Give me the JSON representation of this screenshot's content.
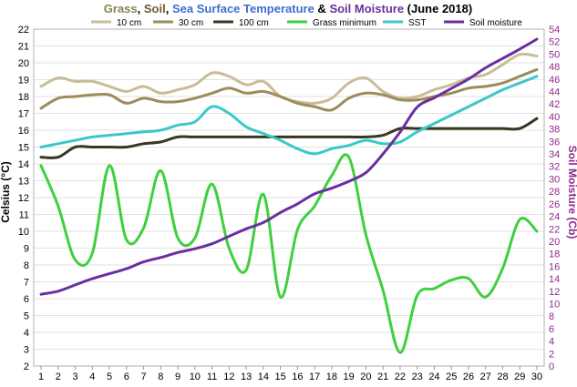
{
  "chart_data": {
    "type": "line",
    "title_parts": [
      {
        "text": "Grass",
        "color": "#8a8150"
      },
      {
        "text": ", ",
        "color": "#000000"
      },
      {
        "text": "Soil",
        "color": "#6b5b2e"
      },
      {
        "text": ", ",
        "color": "#000000"
      },
      {
        "text": "Sea Surface Temperature",
        "color": "#3c6fd1"
      },
      {
        "text": " & ",
        "color": "#000000"
      },
      {
        "text": "Soil Moisture",
        "color": "#6a2f9f"
      },
      {
        "text": " (June 2018)",
        "color": "#000000"
      }
    ],
    "ylabel_left": "Celsius (°C)",
    "ylabel_right": "Soil Moisture (Cb)",
    "x": [
      1,
      2,
      3,
      4,
      5,
      6,
      7,
      8,
      9,
      10,
      11,
      12,
      13,
      14,
      15,
      16,
      17,
      18,
      19,
      20,
      21,
      22,
      23,
      24,
      25,
      26,
      27,
      28,
      29,
      30
    ],
    "ylim_left": [
      2,
      22
    ],
    "yticks_left": [
      2,
      3,
      4,
      5,
      6,
      7,
      8,
      9,
      10,
      11,
      12,
      13,
      14,
      15,
      16,
      17,
      18,
      19,
      20,
      21,
      22
    ],
    "ylim_right": [
      0,
      54
    ],
    "yticks_right": [
      0,
      2,
      4,
      6,
      8,
      10,
      12,
      14,
      16,
      18,
      20,
      22,
      24,
      26,
      28,
      30,
      32,
      34,
      36,
      38,
      40,
      42,
      44,
      46,
      48,
      50,
      52,
      54
    ],
    "legend_position": "top",
    "grid": true,
    "series": [
      {
        "name": "10 cm",
        "axis": "left",
        "color": "#c8bd98",
        "values": [
          18.6,
          19.1,
          18.9,
          18.9,
          18.6,
          18.3,
          18.6,
          18.2,
          18.4,
          18.7,
          19.4,
          19.2,
          18.7,
          18.9,
          18.0,
          17.7,
          17.6,
          17.9,
          18.8,
          19.1,
          18.3,
          17.9,
          18.0,
          18.4,
          18.7,
          19.1,
          19.3,
          19.9,
          20.5,
          20.4
        ]
      },
      {
        "name": "30 cm",
        "axis": "left",
        "color": "#9b8c5a",
        "values": [
          17.3,
          17.9,
          18.0,
          18.1,
          18.1,
          17.6,
          17.9,
          17.7,
          17.7,
          17.9,
          18.2,
          18.5,
          18.2,
          18.3,
          18.0,
          17.6,
          17.4,
          17.2,
          17.9,
          18.2,
          18.1,
          17.8,
          17.8,
          18.0,
          18.2,
          18.5,
          18.6,
          18.8,
          19.2,
          19.6
        ]
      },
      {
        "name": "100 cm",
        "axis": "left",
        "color": "#3b3522",
        "values": [
          14.4,
          14.4,
          15.0,
          15.0,
          15.0,
          15.0,
          15.2,
          15.3,
          15.6,
          15.6,
          15.6,
          15.6,
          15.6,
          15.6,
          15.6,
          15.6,
          15.6,
          15.6,
          15.6,
          15.6,
          15.7,
          16.1,
          16.1,
          16.1,
          16.1,
          16.1,
          16.1,
          16.1,
          16.1,
          16.7
        ]
      },
      {
        "name": "Grass minimum",
        "axis": "left",
        "color": "#3fcf3f",
        "values": [
          13.9,
          11.5,
          8.3,
          8.7,
          13.9,
          9.5,
          10.2,
          13.6,
          9.6,
          9.6,
          12.8,
          9.0,
          7.7,
          12.2,
          6.1,
          10.1,
          11.5,
          13.3,
          14.4,
          9.8,
          6.5,
          2.8,
          6.2,
          6.6,
          7.1,
          7.2,
          6.1,
          7.8,
          10.7,
          10.0
        ]
      },
      {
        "name": "SST",
        "axis": "left",
        "color": "#3cc8c8",
        "values": [
          15.0,
          15.2,
          15.4,
          15.6,
          15.7,
          15.8,
          15.9,
          16.0,
          16.3,
          16.5,
          17.4,
          17.0,
          16.2,
          15.8,
          15.4,
          14.9,
          14.6,
          14.9,
          15.1,
          15.4,
          15.2,
          15.3,
          15.9,
          16.4,
          16.9,
          17.4,
          17.9,
          18.4,
          18.8,
          19.2
        ]
      },
      {
        "name": "Soil moisture",
        "axis": "right",
        "color": "#6a2f9f",
        "values": [
          11.5,
          12.0,
          13.0,
          14.0,
          14.8,
          15.6,
          16.7,
          17.4,
          18.2,
          18.8,
          19.6,
          20.8,
          22.0,
          23.0,
          24.6,
          26.0,
          27.6,
          28.5,
          29.6,
          31.0,
          34.0,
          37.5,
          41.5,
          43.0,
          44.5,
          46.0,
          47.8,
          49.3,
          50.8,
          52.4
        ]
      }
    ]
  }
}
